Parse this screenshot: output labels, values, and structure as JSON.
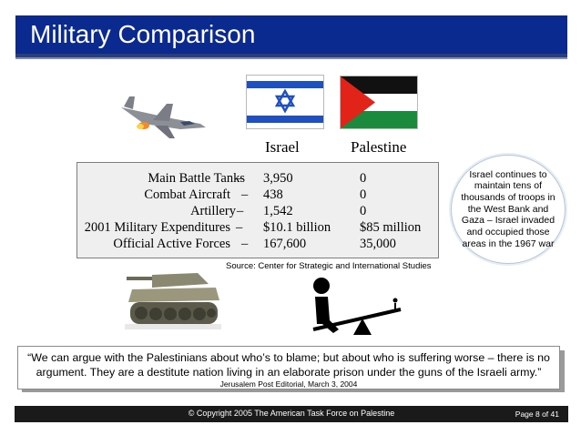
{
  "title": "Military Comparison",
  "flags": {
    "israel_label": "Israel",
    "palestine_label": "Palestine"
  },
  "table": {
    "rows": [
      {
        "label": "Main Battle Tanks",
        "israel": "3,950",
        "palestine": "0"
      },
      {
        "label": "Combat Aircraft",
        "israel": "438",
        "palestine": "0"
      },
      {
        "label": "Artillery",
        "israel": "1,542",
        "palestine": "0"
      },
      {
        "label": "2001 Military Expenditures",
        "israel": "$10.1 billion",
        "palestine": "$85 million"
      },
      {
        "label": "Official Active Forces",
        "israel": "167,600",
        "palestine": "35,000"
      }
    ],
    "dash": "–",
    "source": "Source: Center for Strategic and International Studies"
  },
  "callout": {
    "text": "Israel continues to maintain tens of thousands of troops in the West Bank and Gaza – Israel invaded and occupied those areas in the 1967 war"
  },
  "quote": {
    "text": "“We can argue with the Palestinians about who’s to blame; but about who is suffering worse – there is no argument. They are a destitute nation living in an elaborate prison under the guns of the Israeli army.”",
    "source": "Jerusalem Post Editorial, March 3, 2004"
  },
  "footer": {
    "copyright": "© Copyright 2005 The American Task Force on Palestine",
    "page": "Page 8 of 41"
  },
  "colors": {
    "title_bar": "#0b2a8f",
    "israel_blue": "#1f4fc4",
    "pal_red": "#e2231a",
    "pal_green": "#1b8a3c"
  }
}
